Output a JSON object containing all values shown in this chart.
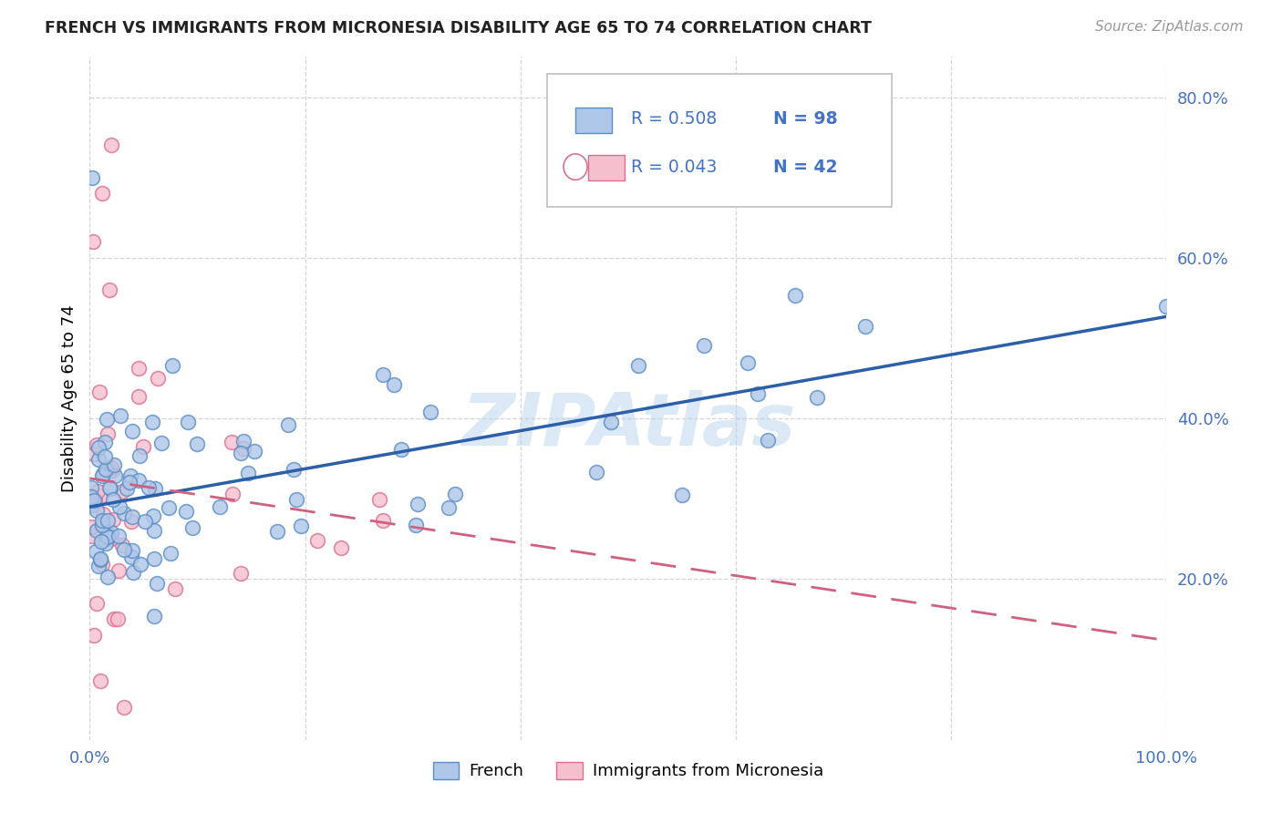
{
  "title": "FRENCH VS IMMIGRANTS FROM MICRONESIA DISABILITY AGE 65 TO 74 CORRELATION CHART",
  "source": "Source: ZipAtlas.com",
  "ylabel": "Disability Age 65 to 74",
  "xlim": [
    0.0,
    1.0
  ],
  "ylim": [
    0.0,
    0.85
  ],
  "xticks": [
    0.0,
    0.2,
    0.4,
    0.6,
    0.8,
    1.0
  ],
  "xticklabels": [
    "0.0%",
    "",
    "",
    "",
    "",
    "100.0%"
  ],
  "yticks": [
    0.2,
    0.4,
    0.6,
    0.8
  ],
  "yticklabels": [
    "20.0%",
    "40.0%",
    "60.0%",
    "80.0%"
  ],
  "tick_color": "#4472c4",
  "grid_color": "#d0d0d0",
  "watermark": "ZIPAtlas",
  "legend_r1": "R = 0.508",
  "legend_n1": "N = 98",
  "legend_r2": "R = 0.043",
  "legend_n2": "N = 42",
  "series1_color": "#aec6e8",
  "series1_edge": "#5b8ec4",
  "series2_color": "#f5bfcd",
  "series2_edge": "#d97090",
  "trend1_color": "#2b5faa",
  "trend2_color": "#d06080",
  "text_color": "#4472c4",
  "title_color": "#222222",
  "source_color": "#999999",
  "bg_color": "#ffffff"
}
